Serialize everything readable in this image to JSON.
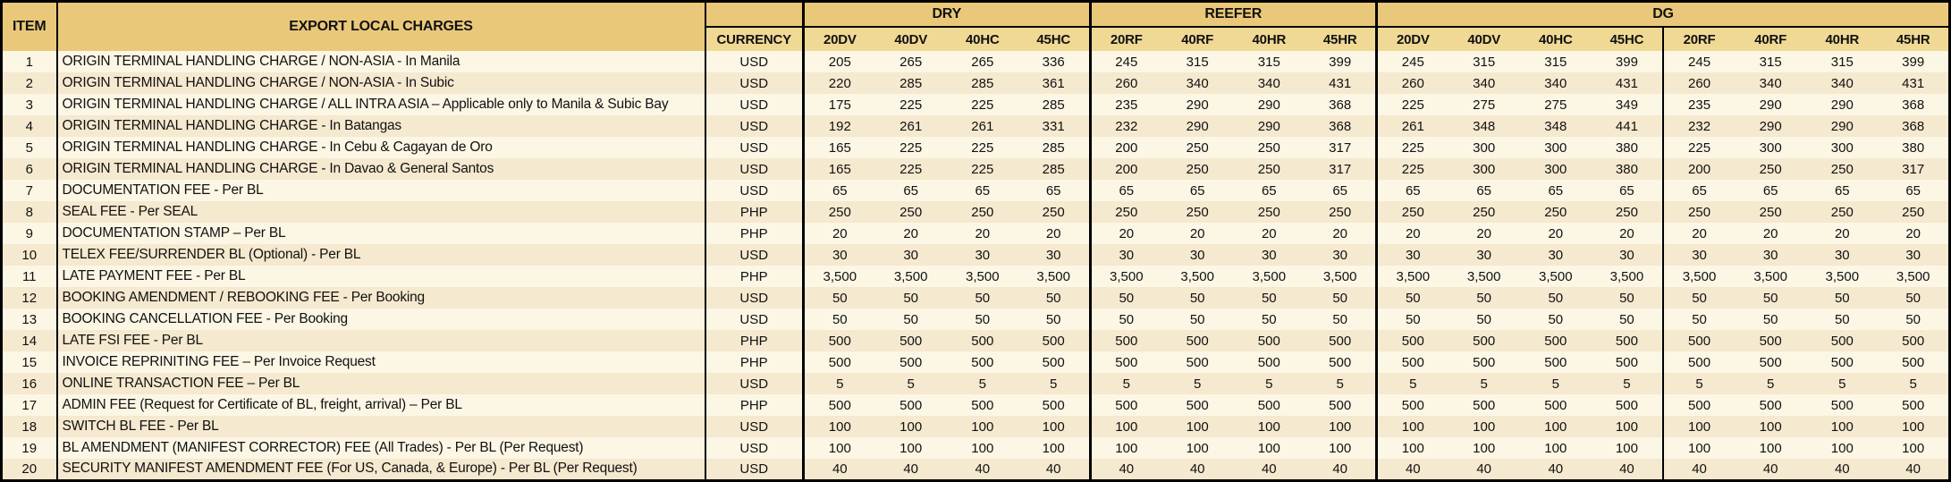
{
  "table": {
    "headers": {
      "item": "ITEM",
      "charges": "EXPORT LOCAL CHARGES",
      "currency": "CURRENCY",
      "groups": [
        {
          "label": "DRY",
          "cols": [
            "20DV",
            "40DV",
            "40HC",
            "45HC"
          ]
        },
        {
          "label": "REEFER",
          "cols": [
            "20RF",
            "40RF",
            "40HR",
            "45HR"
          ]
        },
        {
          "label": "DG",
          "cols": [
            "20DV",
            "40DV",
            "40HC",
            "45HC",
            "20RF",
            "40RF",
            "40HR",
            "45HR"
          ]
        }
      ]
    },
    "rows": [
      {
        "item": "1",
        "description": "ORIGIN TERMINAL HANDLING CHARGE / NON-ASIA - In Manila",
        "currency": "USD",
        "values": [
          "205",
          "265",
          "265",
          "336",
          "245",
          "315",
          "315",
          "399",
          "245",
          "315",
          "315",
          "399",
          "245",
          "315",
          "315",
          "399"
        ]
      },
      {
        "item": "2",
        "description": "ORIGIN TERMINAL HANDLING CHARGE / NON-ASIA - In Subic",
        "currency": "USD",
        "values": [
          "220",
          "285",
          "285",
          "361",
          "260",
          "340",
          "340",
          "431",
          "260",
          "340",
          "340",
          "431",
          "260",
          "340",
          "340",
          "431"
        ]
      },
      {
        "item": "3",
        "description": "ORIGIN TERMINAL HANDLING CHARGE / ALL INTRA ASIA – Applicable only to Manila & Subic Bay",
        "currency": "USD",
        "values": [
          "175",
          "225",
          "225",
          "285",
          "235",
          "290",
          "290",
          "368",
          "225",
          "275",
          "275",
          "349",
          "235",
          "290",
          "290",
          "368"
        ]
      },
      {
        "item": "4",
        "description": "ORIGIN TERMINAL HANDLING CHARGE - In Batangas",
        "currency": "USD",
        "values": [
          "192",
          "261",
          "261",
          "331",
          "232",
          "290",
          "290",
          "368",
          "261",
          "348",
          "348",
          "441",
          "232",
          "290",
          "290",
          "368"
        ]
      },
      {
        "item": "5",
        "description": "ORIGIN TERMINAL HANDLING CHARGE - In Cebu & Cagayan de Oro",
        "currency": "USD",
        "values": [
          "165",
          "225",
          "225",
          "285",
          "200",
          "250",
          "250",
          "317",
          "225",
          "300",
          "300",
          "380",
          "225",
          "300",
          "300",
          "380"
        ]
      },
      {
        "item": "6",
        "description": "ORIGIN TERMINAL HANDLING CHARGE - In Davao & General Santos",
        "currency": "USD",
        "values": [
          "165",
          "225",
          "225",
          "285",
          "200",
          "250",
          "250",
          "317",
          "225",
          "300",
          "300",
          "380",
          "200",
          "250",
          "250",
          "317"
        ]
      },
      {
        "item": "7",
        "description": "DOCUMENTATION FEE - Per BL",
        "currency": "USD",
        "values": [
          "65",
          "65",
          "65",
          "65",
          "65",
          "65",
          "65",
          "65",
          "65",
          "65",
          "65",
          "65",
          "65",
          "65",
          "65",
          "65"
        ]
      },
      {
        "item": "8",
        "description": "SEAL FEE - Per SEAL",
        "currency": "PHP",
        "values": [
          "250",
          "250",
          "250",
          "250",
          "250",
          "250",
          "250",
          "250",
          "250",
          "250",
          "250",
          "250",
          "250",
          "250",
          "250",
          "250"
        ]
      },
      {
        "item": "9",
        "description": "DOCUMENTATION STAMP – Per BL",
        "currency": "PHP",
        "values": [
          "20",
          "20",
          "20",
          "20",
          "20",
          "20",
          "20",
          "20",
          "20",
          "20",
          "20",
          "20",
          "20",
          "20",
          "20",
          "20"
        ]
      },
      {
        "item": "10",
        "description": "TELEX FEE/SURRENDER BL (Optional) - Per BL",
        "currency": "USD",
        "values": [
          "30",
          "30",
          "30",
          "30",
          "30",
          "30",
          "30",
          "30",
          "30",
          "30",
          "30",
          "30",
          "30",
          "30",
          "30",
          "30"
        ]
      },
      {
        "item": "11",
        "description": "LATE PAYMENT FEE - Per BL",
        "currency": "PHP",
        "values": [
          "3,500",
          "3,500",
          "3,500",
          "3,500",
          "3,500",
          "3,500",
          "3,500",
          "3,500",
          "3,500",
          "3,500",
          "3,500",
          "3,500",
          "3,500",
          "3,500",
          "3,500",
          "3,500"
        ]
      },
      {
        "item": "12",
        "description": "BOOKING AMENDMENT / REBOOKING FEE - Per Booking",
        "currency": "USD",
        "values": [
          "50",
          "50",
          "50",
          "50",
          "50",
          "50",
          "50",
          "50",
          "50",
          "50",
          "50",
          "50",
          "50",
          "50",
          "50",
          "50"
        ]
      },
      {
        "item": "13",
        "description": "BOOKING CANCELLATION FEE - Per Booking",
        "currency": "USD",
        "values": [
          "50",
          "50",
          "50",
          "50",
          "50",
          "50",
          "50",
          "50",
          "50",
          "50",
          "50",
          "50",
          "50",
          "50",
          "50",
          "50"
        ]
      },
      {
        "item": "14",
        "description": "LATE FSI FEE - Per BL",
        "currency": "PHP",
        "values": [
          "500",
          "500",
          "500",
          "500",
          "500",
          "500",
          "500",
          "500",
          "500",
          "500",
          "500",
          "500",
          "500",
          "500",
          "500",
          "500"
        ]
      },
      {
        "item": "15",
        "description": "INVOICE REPRINITING FEE – Per Invoice Request",
        "currency": "PHP",
        "values": [
          "500",
          "500",
          "500",
          "500",
          "500",
          "500",
          "500",
          "500",
          "500",
          "500",
          "500",
          "500",
          "500",
          "500",
          "500",
          "500"
        ]
      },
      {
        "item": "16",
        "description": "ONLINE TRANSACTION FEE – Per BL",
        "currency": "USD",
        "values": [
          "5",
          "5",
          "5",
          "5",
          "5",
          "5",
          "5",
          "5",
          "5",
          "5",
          "5",
          "5",
          "5",
          "5",
          "5",
          "5"
        ]
      },
      {
        "item": "17",
        "description": "ADMIN FEE (Request for Certificate of BL, freight, arrival) – Per BL",
        "currency": "PHP",
        "values": [
          "500",
          "500",
          "500",
          "500",
          "500",
          "500",
          "500",
          "500",
          "500",
          "500",
          "500",
          "500",
          "500",
          "500",
          "500",
          "500"
        ]
      },
      {
        "item": "18",
        "description": "SWITCH BL FEE - Per BL",
        "currency": "USD",
        "values": [
          "100",
          "100",
          "100",
          "100",
          "100",
          "100",
          "100",
          "100",
          "100",
          "100",
          "100",
          "100",
          "100",
          "100",
          "100",
          "100"
        ]
      },
      {
        "item": "19",
        "description": "BL AMENDMENT (MANIFEST CORRECTOR) FEE (All Trades) - Per BL (Per Request)",
        "currency": "USD",
        "values": [
          "100",
          "100",
          "100",
          "100",
          "100",
          "100",
          "100",
          "100",
          "100",
          "100",
          "100",
          "100",
          "100",
          "100",
          "100",
          "100"
        ]
      },
      {
        "item": "20",
        "description": "SECURITY MANIFEST AMENDMENT FEE (For US, Canada, & Europe) - Per BL (Per Request)",
        "currency": "USD",
        "values": [
          "40",
          "40",
          "40",
          "40",
          "40",
          "40",
          "40",
          "40",
          "40",
          "40",
          "40",
          "40",
          "40",
          "40",
          "40",
          "40"
        ]
      }
    ]
  },
  "colors": {
    "header_row1_bg": "#EAC87A",
    "header_row2_bg": "#F0D995",
    "row_odd_bg": "#FCF6E5",
    "row_even_bg": "#F5E9CF",
    "border": "#000000",
    "text": "#111111"
  }
}
